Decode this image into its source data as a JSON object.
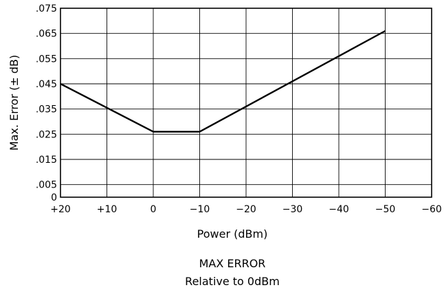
{
  "chart_data": {
    "type": "line",
    "title": "",
    "xlabel": "Power (dBm)",
    "ylabel": "Max. Error (± dB)",
    "xlim": [
      20,
      -60
    ],
    "ylim": [
      0,
      0.075
    ],
    "grid": true,
    "x_ticks": [
      {
        "value": 20,
        "label": "+20"
      },
      {
        "value": 10,
        "label": "+10"
      },
      {
        "value": 0,
        "label": "0"
      },
      {
        "value": -10,
        "label": "−10"
      },
      {
        "value": -20,
        "label": "−20"
      },
      {
        "value": -30,
        "label": "−30"
      },
      {
        "value": -40,
        "label": "−40"
      },
      {
        "value": -50,
        "label": "−50"
      },
      {
        "value": -60,
        "label": "−60"
      }
    ],
    "y_ticks": [
      {
        "value": 0,
        "label": "0"
      },
      {
        "value": 0.005,
        "label": ".005"
      },
      {
        "value": 0.015,
        "label": ".015"
      },
      {
        "value": 0.025,
        "label": ".025"
      },
      {
        "value": 0.035,
        "label": ".035"
      },
      {
        "value": 0.045,
        "label": ".045"
      },
      {
        "value": 0.055,
        "label": ".055"
      },
      {
        "value": 0.065,
        "label": ".065"
      },
      {
        "value": 0.075,
        "label": ".075"
      }
    ],
    "series": [
      {
        "x": [
          20,
          0,
          -10,
          -50
        ],
        "y": [
          0.045,
          0.026,
          0.026,
          0.066
        ]
      }
    ],
    "caption": [
      "MAX ERROR",
      "Relative to 0dBm"
    ]
  }
}
